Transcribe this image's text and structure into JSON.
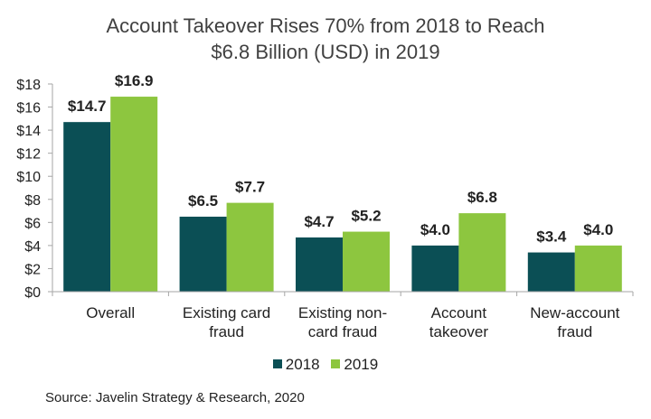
{
  "chart_data": {
    "type": "bar",
    "title_lines": [
      "Account Takeover Rises 70% from 2018 to Reach",
      "$6.8 Billion (USD) in 2019"
    ],
    "categories": [
      [
        "Overall"
      ],
      [
        "Existing card",
        "fraud"
      ],
      [
        "Existing non-",
        "card fraud"
      ],
      [
        "Account",
        "takeover"
      ],
      [
        "New-account",
        "fraud"
      ]
    ],
    "series": [
      {
        "name": "2018",
        "color": "#0b4f55",
        "values": [
          14.7,
          6.5,
          4.7,
          4.0,
          3.4
        ],
        "labels": [
          "$14.7",
          "$6.5",
          "$4.7",
          "$4.0",
          "$3.4"
        ]
      },
      {
        "name": "2019",
        "color": "#8dc63f",
        "values": [
          16.9,
          7.7,
          5.2,
          6.8,
          4.0
        ],
        "labels": [
          "$16.9",
          "$7.7",
          "$5.2",
          "$6.8",
          "$4.0"
        ]
      }
    ],
    "ylim": [
      0,
      18
    ],
    "yticks": [
      {
        "value": 0,
        "label": "$0"
      },
      {
        "value": 2,
        "label": "$2"
      },
      {
        "value": 4,
        "label": "$4"
      },
      {
        "value": 6,
        "label": "$6"
      },
      {
        "value": 8,
        "label": "$8"
      },
      {
        "value": 10,
        "label": "$10"
      },
      {
        "value": 12,
        "label": "$12"
      },
      {
        "value": 14,
        "label": "$14"
      },
      {
        "value": 16,
        "label": "$16"
      },
      {
        "value": 18,
        "label": "$18"
      }
    ],
    "grid": false,
    "legend_position": "bottom"
  },
  "source": "Source:  Javelin Strategy & Research, 2020"
}
